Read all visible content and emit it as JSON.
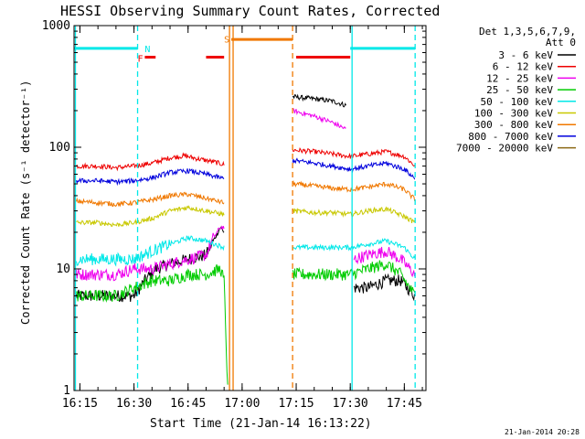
{
  "chart_data": {
    "type": "line",
    "title": "HESSI Observing Summary Count Rates, Corrected",
    "xlabel": "Start Time (21-Jan-14 16:13:22)",
    "ylabel": "Corrected Count Rate (s⁻¹ detector⁻¹)",
    "xlim": [
      "16:13:22",
      "17:51:00"
    ],
    "ylim": [
      1,
      1000
    ],
    "y_scale": "log",
    "grid": false,
    "legend_position": "right",
    "legend_header": [
      "Det 1,3,5,6,7,9,",
      "Att 0"
    ],
    "x_tick_labels": [
      "16:15",
      "16:30",
      "16:45",
      "17:00",
      "17:15",
      "17:30",
      "17:45"
    ],
    "y_tick_labels": [
      "1",
      "10",
      "100",
      "1000"
    ],
    "footer": "21-Jan-2014 20:28",
    "gap": {
      "start": "16:56",
      "end": "17:13"
    },
    "series": [
      {
        "name": "3 - 6 keV",
        "color": "#000000",
        "segments": [
          {
            "t": [
              "16:14",
              "16:20",
              "16:25",
              "16:30",
              "16:33",
              "16:36",
              "16:40",
              "16:45",
              "16:50",
              "16:52",
              "16:54",
              "16:55"
            ],
            "v": [
              6,
              6,
              6,
              6,
              8,
              10,
              11,
              12,
              13,
              17,
              22,
              20
            ]
          },
          {
            "t": [
              "17:14",
              "17:20",
              "17:25",
              "17:29"
            ],
            "v": [
              260,
              250,
              240,
              220
            ]
          },
          {
            "t": [
              "17:31",
              "17:35",
              "17:40",
              "17:44",
              "17:48"
            ],
            "v": [
              7,
              7,
              8,
              8,
              6
            ]
          }
        ]
      },
      {
        "name": "6 - 12 keV",
        "color": "#ee0000",
        "segments": [
          {
            "t": [
              "16:14",
              "16:20",
              "16:25",
              "16:30",
              "16:35",
              "16:40",
              "16:44",
              "16:48",
              "16:52",
              "16:55"
            ],
            "v": [
              70,
              70,
              68,
              70,
              74,
              82,
              85,
              80,
              76,
              72
            ]
          },
          {
            "t": [
              "17:14",
              "17:20",
              "17:25",
              "17:30",
              "17:35",
              "17:40",
              "17:45",
              "17:48"
            ],
            "v": [
              95,
              92,
              88,
              84,
              88,
              92,
              84,
              70
            ]
          }
        ]
      },
      {
        "name": "12 - 25 keV",
        "color": "#ee00ee",
        "segments": [
          {
            "t": [
              "16:14",
              "16:20",
              "16:25",
              "16:30",
              "16:35",
              "16:40",
              "16:45",
              "16:50",
              "16:52",
              "16:54",
              "16:55"
            ],
            "v": [
              9,
              9,
              9,
              10,
              10,
              11,
              12,
              13,
              18,
              22,
              22
            ]
          },
          {
            "t": [
              "17:14",
              "17:20",
              "17:25",
              "17:29"
            ],
            "v": [
              200,
              180,
              160,
              140
            ]
          },
          {
            "t": [
              "17:31",
              "17:35",
              "17:40",
              "17:44",
              "17:48"
            ],
            "v": [
              12,
              13,
              14,
              12,
              9
            ]
          }
        ]
      },
      {
        "name": "25 - 50 keV",
        "color": "#00cc00",
        "segments": [
          {
            "t": [
              "16:14",
              "16:20",
              "16:25",
              "16:30",
              "16:35",
              "16:40",
              "16:45",
              "16:50",
              "16:54",
              "16:55",
              "16:56"
            ],
            "v": [
              6,
              6,
              6,
              7,
              8,
              8,
              9,
              9,
              10,
              8,
              1
            ]
          },
          {
            "t": [
              "17:14",
              "17:20",
              "17:25",
              "17:30",
              "17:35",
              "17:40",
              "17:44",
              "17:48"
            ],
            "v": [
              9,
              9,
              9,
              9,
              10,
              11,
              9,
              6
            ]
          }
        ]
      },
      {
        "name": "50 - 100 keV",
        "color": "#00e8e8",
        "segments": [
          {
            "t": [
              "16:14",
              "16:20",
              "16:25",
              "16:30",
              "16:35",
              "16:40",
              "16:45",
              "16:50",
              "16:55"
            ],
            "v": [
              12,
              12,
              12,
              12,
              14,
              16,
              18,
              17,
              15
            ]
          },
          {
            "t": [
              "17:14",
              "17:20",
              "17:25",
              "17:30",
              "17:35",
              "17:40",
              "17:45",
              "17:48"
            ],
            "v": [
              15,
              15,
              15,
              15,
              16,
              17,
              15,
              12
            ]
          }
        ]
      },
      {
        "name": "100 - 300 keV",
        "color": "#c8c800",
        "segments": [
          {
            "t": [
              "16:14",
              "16:20",
              "16:25",
              "16:30",
              "16:35",
              "16:40",
              "16:45",
              "16:50",
              "16:55"
            ],
            "v": [
              24,
              24,
              23,
              24,
              26,
              30,
              32,
              30,
              28
            ]
          },
          {
            "t": [
              "17:14",
              "17:20",
              "17:25",
              "17:30",
              "17:35",
              "17:40",
              "17:45",
              "17:48"
            ],
            "v": [
              30,
              29,
              29,
              28,
              30,
              31,
              27,
              24
            ]
          }
        ]
      },
      {
        "name": "300 - 800 keV",
        "color": "#f07800",
        "segments": [
          {
            "t": [
              "16:14",
              "16:20",
              "16:25",
              "16:30",
              "16:35",
              "16:40",
              "16:45",
              "16:50",
              "16:55"
            ],
            "v": [
              36,
              35,
              34,
              35,
              37,
              40,
              41,
              38,
              35
            ]
          },
          {
            "t": [
              "17:14",
              "17:20",
              "17:25",
              "17:30",
              "17:35",
              "17:40",
              "17:45",
              "17:48"
            ],
            "v": [
              50,
              48,
              46,
              45,
              47,
              50,
              45,
              37
            ]
          }
        ]
      },
      {
        "name": "800 - 7000 keV",
        "color": "#0000dd",
        "segments": [
          {
            "t": [
              "16:14",
              "16:20",
              "16:25",
              "16:30",
              "16:35",
              "16:40",
              "16:45",
              "16:50",
              "16:55"
            ],
            "v": [
              53,
              53,
              52,
              53,
              56,
              62,
              64,
              60,
              55
            ]
          },
          {
            "t": [
              "17:14",
              "17:20",
              "17:25",
              "17:30",
              "17:35",
              "17:40",
              "17:45",
              "17:48"
            ],
            "v": [
              78,
              74,
              70,
              66,
              70,
              74,
              66,
              55
            ]
          }
        ]
      },
      {
        "name": "7000 - 20000 keV",
        "color": "#8b6914",
        "segments": []
      }
    ],
    "flags": [
      {
        "name": "SAA",
        "label": "",
        "color": "#00e8e8",
        "y": 650,
        "t0": "16:13:22",
        "t1": "16:31"
      },
      {
        "name": "SAA",
        "label": "",
        "color": "#00e8e8",
        "y": 650,
        "t0": "17:30",
        "t1": "17:48"
      },
      {
        "name": "Flare",
        "label": "",
        "color": "#ee0000",
        "y": 550,
        "t0": "16:33",
        "t1": "16:36"
      },
      {
        "name": "Flare",
        "label": "",
        "color": "#ee0000",
        "y": 550,
        "t0": "16:50",
        "t1": "16:55"
      },
      {
        "name": "Flare",
        "label": "",
        "color": "#ee0000",
        "y": 550,
        "t0": "17:15",
        "t1": "17:30"
      },
      {
        "name": "Night",
        "label": "",
        "color": "#f07800",
        "y": 770,
        "t0": "16:57",
        "t1": "17:14"
      }
    ],
    "flag_labels": [
      {
        "text": "N",
        "color": "#00e8e8",
        "t": "16:33",
        "y": 650
      },
      {
        "text": "F",
        "color": "#ee0000",
        "t": "16:31",
        "y": 540
      },
      {
        "text": "S",
        "color": "#f07800",
        "t": "16:55",
        "y": 780
      }
    ],
    "vertical_markers": [
      {
        "t": "16:13:45",
        "color": "#00e8e8",
        "style": "solid"
      },
      {
        "t": "16:31:00",
        "color": "#00e8e8",
        "style": "dashed"
      },
      {
        "t": "16:56:30",
        "color": "#f07800",
        "style": "solid"
      },
      {
        "t": "16:57:30",
        "color": "#f07800",
        "style": "solid"
      },
      {
        "t": "17:14:00",
        "color": "#f07800",
        "style": "dashed"
      },
      {
        "t": "17:30:30",
        "color": "#00e8e8",
        "style": "solid"
      },
      {
        "t": "17:48:00",
        "color": "#00e8e8",
        "style": "dashed"
      }
    ]
  }
}
